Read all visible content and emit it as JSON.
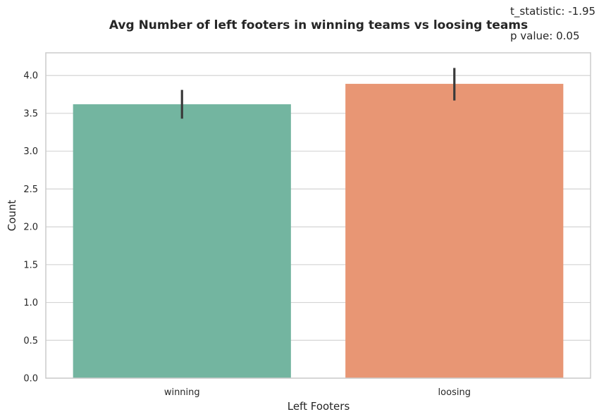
{
  "chart_data": {
    "type": "bar",
    "title": "Avg Number of left footers in winning teams vs loosing teams",
    "xlabel": "Left Footers",
    "ylabel": "Count",
    "categories": [
      "winning",
      "loosing"
    ],
    "values": [
      3.62,
      3.89
    ],
    "error_low": [
      3.43,
      3.67
    ],
    "error_high": [
      3.81,
      4.1
    ],
    "ylim": [
      0,
      4.3
    ],
    "yticks": [
      "0.0",
      "0.5",
      "1.0",
      "1.5",
      "2.0",
      "2.5",
      "3.0",
      "3.5",
      "4.0"
    ],
    "grid": true,
    "colors": [
      "#73b5a0",
      "#e89674"
    ],
    "error_color": "#3a3a3a",
    "annotations": {
      "t_statistic": "t_statistic: -1.95",
      "p_value": "p value: 0.05"
    }
  }
}
